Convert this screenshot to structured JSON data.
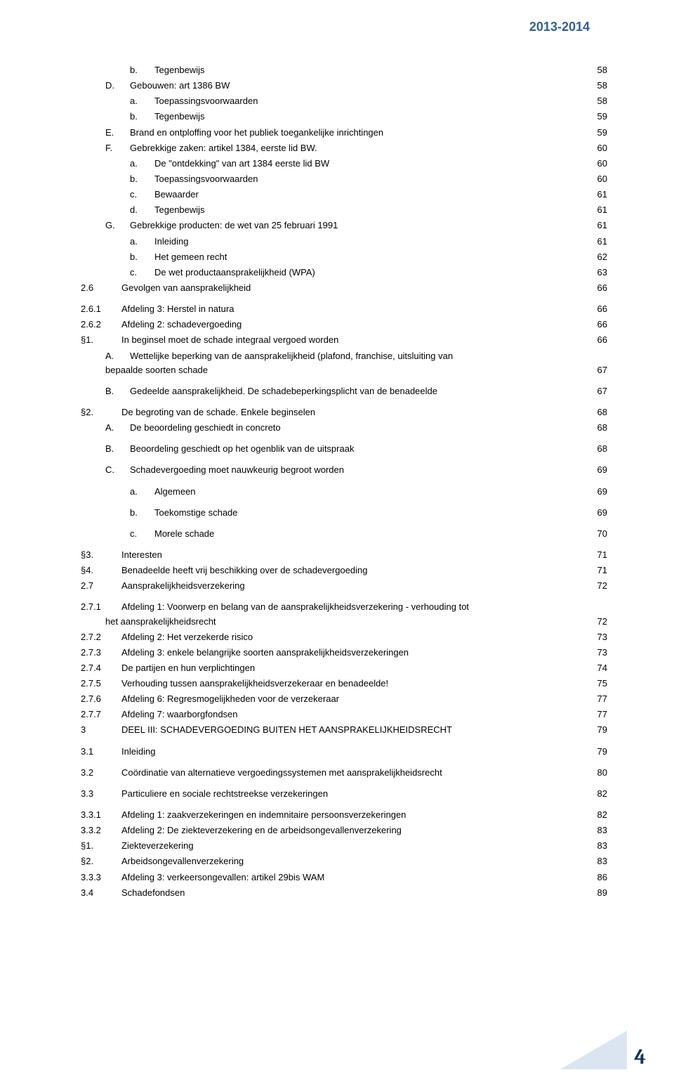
{
  "header": {
    "year": "2013-2014"
  },
  "footer": {
    "page": "4"
  },
  "colors": {
    "header_text": "#365f91",
    "footer_text": "#17365d",
    "footer_bg": "#dbe5f1",
    "body_text": "#000000",
    "page_bg": "#ffffff"
  },
  "fonts": {
    "body_family": "Verdana",
    "body_size_pt": 10,
    "header_size_pt": 14,
    "footer_size_pt": 22
  },
  "toc": [
    {
      "indent": 2,
      "num": "b.",
      "label": "Tegenbewijs",
      "page": "58"
    },
    {
      "indent": 1,
      "num": "D.",
      "label": "Gebouwen: art 1386 BW",
      "page": "58"
    },
    {
      "indent": 2,
      "num": "a.",
      "label": "Toepassingsvoorwaarden",
      "page": "58"
    },
    {
      "indent": 2,
      "num": "b.",
      "label": "Tegenbewijs",
      "page": "59"
    },
    {
      "indent": 1,
      "num": "E.",
      "label": "Brand en ontploffing voor het publiek toegankelijke inrichtingen",
      "page": "59"
    },
    {
      "indent": 1,
      "num": "F.",
      "label": "Gebrekkige zaken: artikel 1384, eerste lid BW.",
      "page": "60"
    },
    {
      "indent": 2,
      "num": "a.",
      "label": "De \"ontdekking\" van art 1384 eerste lid BW",
      "page": "60"
    },
    {
      "indent": 2,
      "num": "b.",
      "label": "Toepassingsvoorwaarden",
      "page": "60"
    },
    {
      "indent": 2,
      "num": "c.",
      "label": "Bewaarder",
      "page": "61"
    },
    {
      "indent": 2,
      "num": "d.",
      "label": "Tegenbewijs",
      "page": "61"
    },
    {
      "indent": 1,
      "num": "G.",
      "label": "Gebrekkige producten: de wet van 25 februari 1991",
      "page": "61"
    },
    {
      "indent": 2,
      "num": "a.",
      "label": "Inleiding",
      "page": "61"
    },
    {
      "indent": 2,
      "num": "b.",
      "label": "Het gemeen recht",
      "page": "62"
    },
    {
      "indent": 2,
      "num": "c.",
      "label": "De wet productaansprakelijkheid (WPA)",
      "page": "63"
    },
    {
      "indent": 0,
      "num": "2.6",
      "label": "Gevolgen van aansprakelijkheid",
      "page": "66",
      "gap_after": true
    },
    {
      "indent": 0,
      "num": "2.6.1",
      "label": "Afdeling 3: Herstel in natura",
      "page": "66"
    },
    {
      "indent": 0,
      "num": "2.6.2",
      "label": "Afdeling 2: schadevergoeding",
      "page": "66"
    },
    {
      "indent": 0,
      "num": "§1.",
      "label": "In beginsel moet de schade integraal vergoed worden",
      "page": "66"
    },
    {
      "indent": 1,
      "num": "A.",
      "label_wrap1": "Wettelijke beperking van de aansprakelijkheid (plafond, franchise, uitsluiting van",
      "label_wrap2": "bepaalde soorten schade",
      "page": "67",
      "wrap": true
    },
    {
      "indent": 1,
      "num": "B.",
      "label": "Gedeelde aansprakelijkheid. De schadebeperkingsplicht van de benadeelde",
      "page": "67",
      "gap_before": true
    },
    {
      "indent": 0,
      "num": "§2.",
      "label": "De begroting van de schade. Enkele beginselen",
      "page": "68",
      "gap_before": true
    },
    {
      "indent": 1,
      "num": "A.",
      "label": "De beoordeling geschiedt in concreto",
      "page": "68"
    },
    {
      "indent": 1,
      "num": "B.",
      "label": "Beoordeling geschiedt op het ogenblik van de uitspraak",
      "page": "68",
      "gap_before": true
    },
    {
      "indent": 1,
      "num": "C.",
      "label": "Schadevergoeding moet nauwkeurig begroot worden",
      "page": "69",
      "gap_before": true
    },
    {
      "indent": 2,
      "num": "a.",
      "label": "Algemeen",
      "page": "69",
      "gap_before": true
    },
    {
      "indent": 2,
      "num": "b.",
      "label": "Toekomstige schade",
      "page": "69",
      "gap_before": true
    },
    {
      "indent": 2,
      "num": "c.",
      "label": "Morele schade",
      "page": "70",
      "gap_before": true
    },
    {
      "indent": 0,
      "num": "§3.",
      "label": "Interesten",
      "page": "71",
      "gap_before": true
    },
    {
      "indent": 0,
      "num": "§4.",
      "label": "Benadeelde heeft vrij beschikking over de schadevergoeding",
      "page": "71"
    },
    {
      "indent": 0,
      "num": "2.7",
      "label": "Aansprakelijkheidsverzekering",
      "page": "72",
      "gap_after": true
    },
    {
      "indent": 0,
      "num": "2.7.1",
      "label_wrap1": "Afdeling 1: Voorwerp en belang van de aansprakelijkheidsverzekering - verhouding tot",
      "label_wrap2": "het aansprakelijkheidsrecht",
      "page": "72",
      "wrap": true,
      "wrap_indent": 1
    },
    {
      "indent": 0,
      "num": "2.7.2",
      "label": "Afdeling 2: Het verzekerde risico",
      "page": "73"
    },
    {
      "indent": 0,
      "num": "2.7.3",
      "label": "Afdeling 3: enkele belangrijke soorten aansprakelijkheidsverzekeringen",
      "page": "73"
    },
    {
      "indent": 0,
      "num": "2.7.4",
      "label": "De partijen en hun verplichtingen",
      "page": "74"
    },
    {
      "indent": 0,
      "num": "2.7.5",
      "label": "Verhouding tussen aansprakelijkheidsverzekeraar en benadeelde!",
      "page": "75"
    },
    {
      "indent": 0,
      "num": "2.7.6",
      "label": "Afdeling 6: Regresmogelijkheden voor de verzekeraar",
      "page": "77"
    },
    {
      "indent": 0,
      "num": "2.7.7",
      "label": "Afdeling 7: waarborgfondsen",
      "page": "77"
    },
    {
      "indent": 0,
      "num": "3",
      "label": "DEEL III: SCHADEVERGOEDING BUITEN HET AANSPRAKELIJKHEIDSRECHT",
      "page": "79",
      "gap_after": true
    },
    {
      "indent": 0,
      "num": "3.1",
      "label": "Inleiding",
      "page": "79",
      "gap_after": true
    },
    {
      "indent": 0,
      "num": "3.2",
      "label": "Coördinatie van alternatieve vergoedingssystemen met aansprakelijkheidsrecht",
      "page": "80",
      "gap_after": true
    },
    {
      "indent": 0,
      "num": "3.3",
      "label": "Particuliere en sociale rechtstreekse verzekeringen",
      "page": "82",
      "gap_after": true
    },
    {
      "indent": 0,
      "num": "3.3.1",
      "label": "Afdeling 1: zaakverzekeringen en indemnitaire persoonsverzekeringen",
      "page": "82"
    },
    {
      "indent": 0,
      "num": "3.3.2",
      "label": "Afdeling 2: De ziekteverzekering en de arbeidsongevallenverzekering",
      "page": "83"
    },
    {
      "indent": 0,
      "num": "§1.",
      "label": "Ziekteverzekering",
      "page": "83"
    },
    {
      "indent": 0,
      "num": "§2.",
      "label": "Arbeidsongevallenverzekering",
      "page": "83"
    },
    {
      "indent": 0,
      "num": "3.3.3",
      "label": "Afdeling 3: verkeersongevallen: artikel 29bis WAM",
      "page": "86"
    },
    {
      "indent": 0,
      "num": "3.4",
      "label": "Schadefondsen",
      "page": "89"
    }
  ]
}
